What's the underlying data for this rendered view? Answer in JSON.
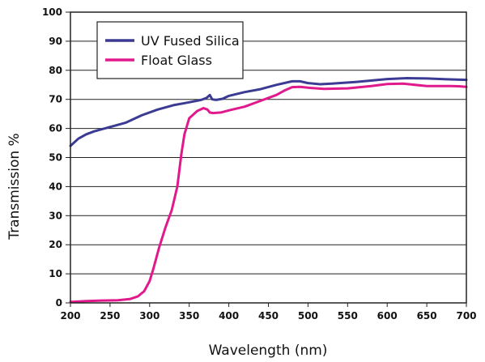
{
  "chart_data": {
    "type": "line",
    "title": "",
    "xlabel": "Wavelength (nm)",
    "ylabel": "Transmission %",
    "xlim": [
      200,
      700
    ],
    "ylim": [
      0,
      100
    ],
    "x_ticks": [
      200,
      250,
      300,
      350,
      400,
      450,
      500,
      550,
      600,
      650,
      700
    ],
    "y_ticks": [
      0,
      10,
      20,
      30,
      40,
      50,
      60,
      70,
      80,
      90,
      100
    ],
    "grid": "horizontal",
    "legend_position": "top-left",
    "series": [
      {
        "name": "UV Fused Silica",
        "color": "#3b3b94",
        "points": [
          [
            200,
            54
          ],
          [
            210,
            56.5
          ],
          [
            220,
            58
          ],
          [
            230,
            59
          ],
          [
            250,
            60.5
          ],
          [
            270,
            62
          ],
          [
            290,
            64.5
          ],
          [
            310,
            66.5
          ],
          [
            330,
            68
          ],
          [
            350,
            69
          ],
          [
            365,
            69.8
          ],
          [
            372,
            70.5
          ],
          [
            376,
            71.5
          ],
          [
            379,
            70
          ],
          [
            384,
            69.8
          ],
          [
            392,
            70.2
          ],
          [
            400,
            71.2
          ],
          [
            420,
            72.5
          ],
          [
            440,
            73.5
          ],
          [
            460,
            75
          ],
          [
            480,
            76.2
          ],
          [
            490,
            76.2
          ],
          [
            500,
            75.6
          ],
          [
            515,
            75.2
          ],
          [
            530,
            75.4
          ],
          [
            560,
            76
          ],
          [
            600,
            77
          ],
          [
            625,
            77.3
          ],
          [
            650,
            77.2
          ],
          [
            675,
            76.9
          ],
          [
            700,
            76.7
          ]
        ]
      },
      {
        "name": "Float Glass",
        "color": "#e0198c",
        "points": [
          [
            200,
            0.3
          ],
          [
            220,
            0.6
          ],
          [
            240,
            0.8
          ],
          [
            260,
            0.9
          ],
          [
            275,
            1.3
          ],
          [
            285,
            2.2
          ],
          [
            293,
            4
          ],
          [
            300,
            7.5
          ],
          [
            305,
            12
          ],
          [
            312,
            19
          ],
          [
            320,
            26
          ],
          [
            328,
            32
          ],
          [
            335,
            40
          ],
          [
            340,
            51
          ],
          [
            344,
            58
          ],
          [
            350,
            63.5
          ],
          [
            360,
            66
          ],
          [
            368,
            67
          ],
          [
            373,
            66.5
          ],
          [
            376,
            65.5
          ],
          [
            380,
            65.3
          ],
          [
            390,
            65.5
          ],
          [
            400,
            66.2
          ],
          [
            420,
            67.5
          ],
          [
            440,
            69.5
          ],
          [
            460,
            71.5
          ],
          [
            470,
            73
          ],
          [
            480,
            74.2
          ],
          [
            490,
            74.3
          ],
          [
            500,
            74
          ],
          [
            520,
            73.6
          ],
          [
            550,
            73.8
          ],
          [
            580,
            74.6
          ],
          [
            600,
            75.3
          ],
          [
            620,
            75.4
          ],
          [
            650,
            74.6
          ],
          [
            680,
            74.6
          ],
          [
            690,
            74.5
          ],
          [
            700,
            74.3
          ]
        ]
      }
    ]
  }
}
